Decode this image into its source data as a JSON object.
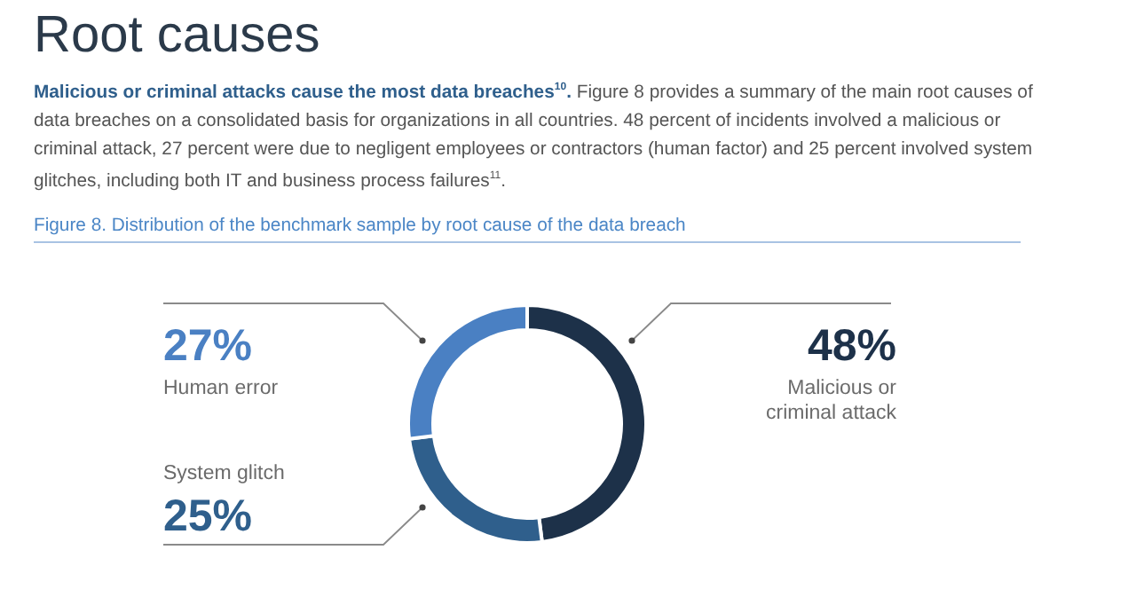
{
  "chart_data": {
    "type": "donut",
    "title": "Root causes",
    "subtitle": "Figure 8. Distribution of the benchmark sample by root cause of the data breach",
    "annotations": [
      "Malicious or criminal attacks cause the most data breaches$^{10}$.",
      "Figure 8 provides a summary of the main root causes of data breaches on a consolidated basis for organizations in all countries. 48 percent of incidents involved a malicious or criminal attack, 27 percent were due to negligent employees or contractors (human factor) and 25 percent involved system glitches, including both IT and business process failures$^{11}$."
    ],
    "categories": [
      "Malicious or\ncriminal attack",
      "System glitch",
      "Human error"
    ],
    "values": [
      48,
      25,
      27
    ],
    "value_labels": [
      "48%",
      "25%",
      "27%"
    ],
    "colors": [
      "#1d3149",
      "#2f5f8c",
      "#4a80c3"
    ]
  }
}
